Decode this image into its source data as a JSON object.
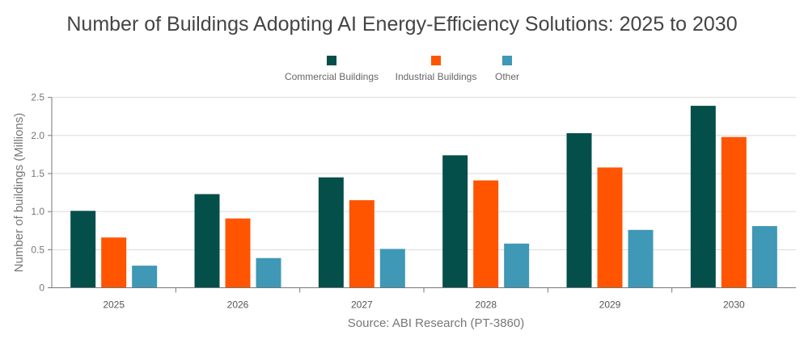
{
  "chart_data": {
    "type": "bar",
    "title": "Number of Buildings Adopting AI Energy-Efficiency Solutions: 2025 to 2030",
    "xlabel": "Source: ABI Research (PT-3860)",
    "ylabel": "Number of buildings (Millions)",
    "ylim": [
      0,
      2.5
    ],
    "yticks": [
      "0",
      "0.5",
      "1.0",
      "1.5",
      "2.0",
      "2.5"
    ],
    "grid": true,
    "legend_position": "top",
    "categories": [
      "2025",
      "2026",
      "2027",
      "2028",
      "2029",
      "2030"
    ],
    "series": [
      {
        "name": "Commercial Buildings",
        "color": "#044f4a",
        "values": [
          1.01,
          1.23,
          1.45,
          1.74,
          2.03,
          2.39
        ]
      },
      {
        "name": "Industrial Buildings",
        "color": "#ff5500",
        "values": [
          0.66,
          0.91,
          1.15,
          1.41,
          1.58,
          1.98
        ]
      },
      {
        "name": "Other",
        "color": "#3f98b5",
        "values": [
          0.29,
          0.39,
          0.51,
          0.58,
          0.76,
          0.81
        ]
      }
    ]
  }
}
